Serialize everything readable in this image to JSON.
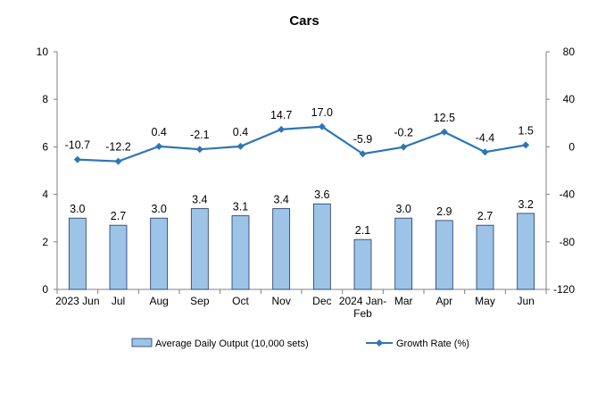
{
  "chart_data": {
    "type": "bar+line",
    "title": "Cars",
    "categories": [
      [
        "2023 Jun"
      ],
      [
        "Jul"
      ],
      [
        "Aug"
      ],
      [
        "Sep"
      ],
      [
        "Oct"
      ],
      [
        "Nov"
      ],
      [
        "Dec"
      ],
      [
        "2024 Jan-",
        "Feb"
      ],
      [
        "Mar"
      ],
      [
        "Apr"
      ],
      [
        "May"
      ],
      [
        "Jun"
      ]
    ],
    "series": [
      {
        "name": "Average Daily Output (10,000 sets)",
        "type": "bar",
        "axis": "left",
        "values": [
          3.0,
          2.7,
          3.0,
          3.4,
          3.1,
          3.4,
          3.6,
          2.1,
          3.0,
          2.9,
          2.7,
          3.2
        ],
        "labels": [
          "3.0",
          "2.7",
          "3.0",
          "3.4",
          "3.1",
          "3.4",
          "3.6",
          "2.1",
          "3.0",
          "2.9",
          "2.7",
          "3.2"
        ],
        "color": "#9dc3e6",
        "border_color": "#1f3864"
      },
      {
        "name": "Growth Rate (%)",
        "type": "line",
        "axis": "right",
        "values": [
          -10.7,
          -12.2,
          0.4,
          -2.1,
          0.4,
          14.7,
          17.0,
          -5.9,
          -0.2,
          12.5,
          -4.4,
          1.5
        ],
        "labels": [
          "-10.7",
          "-12.2",
          "0.4",
          "-2.1",
          "0.4",
          "14.7",
          "17.0",
          "-5.9",
          "-0.2",
          "12.5",
          "-4.4",
          "1.5"
        ],
        "color": "#2e75b6"
      }
    ],
    "y_left": {
      "min": 0,
      "max": 10,
      "ticks": [
        "0",
        "2",
        "4",
        "6",
        "8",
        "10"
      ]
    },
    "y_right": {
      "min": -120,
      "max": 80,
      "ticks": [
        "-120",
        "-80",
        "-40",
        "0",
        "40",
        "80"
      ]
    },
    "grid": false,
    "legend_position": "bottom"
  }
}
